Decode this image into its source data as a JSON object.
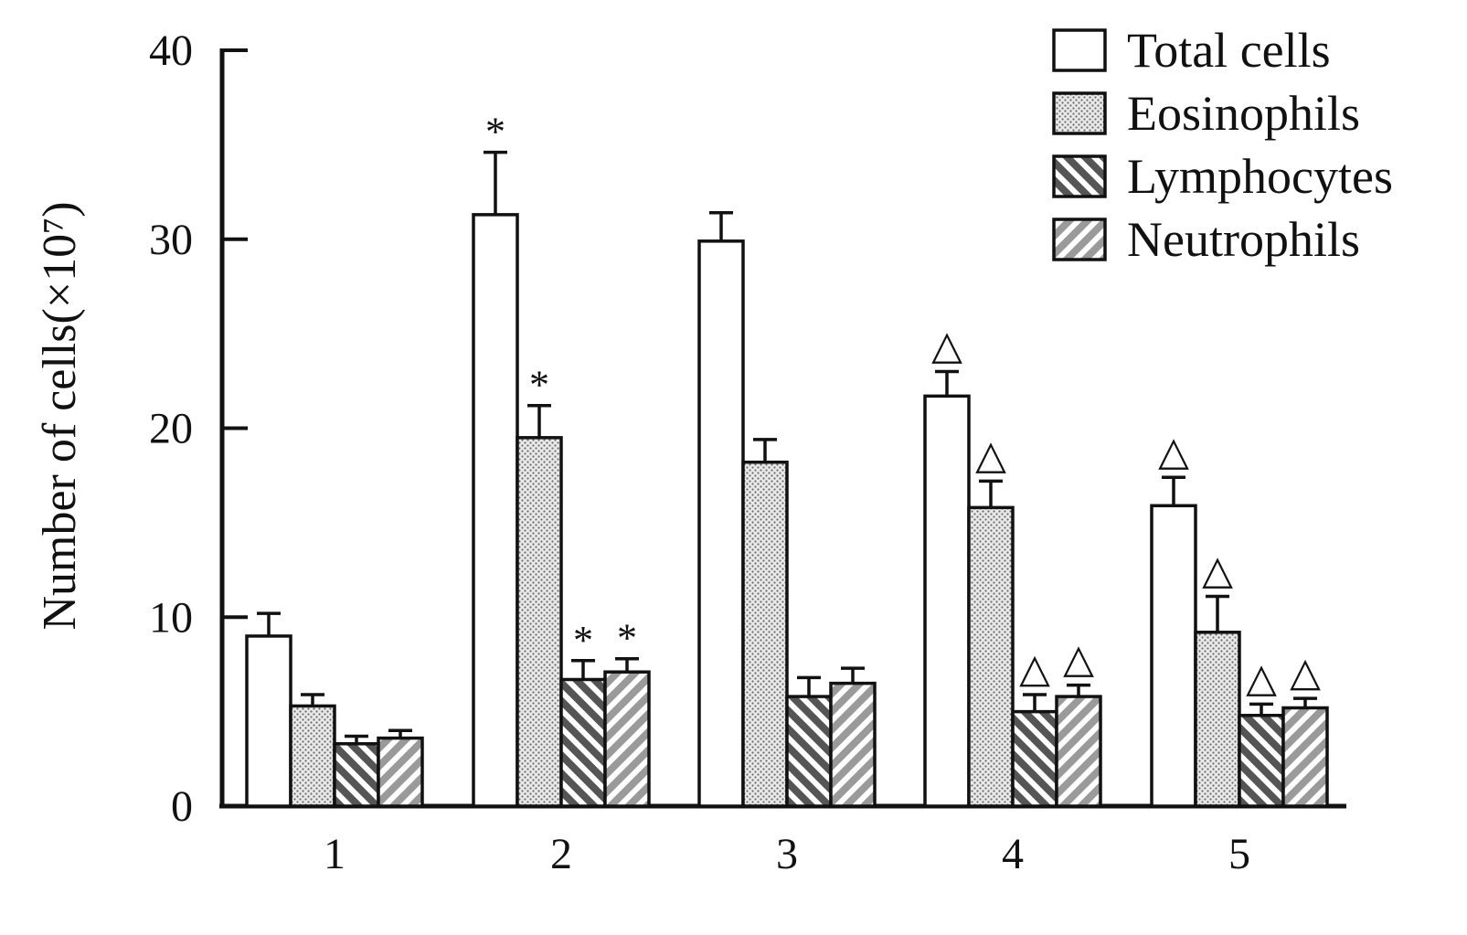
{
  "chart_data": {
    "type": "bar",
    "title": "",
    "xlabel": "",
    "ylabel": "Number of cells(×10⁷)",
    "ylim": [
      0,
      40
    ],
    "yticks": [
      0,
      10,
      20,
      30,
      40
    ],
    "categories": [
      "1",
      "2",
      "3",
      "4",
      "5"
    ],
    "legend_position": "top-right",
    "series": [
      {
        "name": "Total cells",
        "pattern": "empty",
        "values": [
          9.0,
          31.3,
          29.9,
          21.7,
          15.9
        ],
        "errors": [
          1.2,
          3.3,
          1.5,
          1.3,
          1.5
        ],
        "markers": [
          "",
          "*",
          "",
          "△",
          "△"
        ]
      },
      {
        "name": "Eosinophils",
        "pattern": "dots",
        "values": [
          5.3,
          19.5,
          18.2,
          15.8,
          9.2
        ],
        "errors": [
          0.6,
          1.7,
          1.2,
          1.4,
          1.9
        ],
        "markers": [
          "",
          "*",
          "",
          "△",
          "△"
        ]
      },
      {
        "name": "Lymphocytes",
        "pattern": "backslash",
        "values": [
          3.3,
          6.7,
          5.8,
          5.0,
          4.8
        ],
        "errors": [
          0.4,
          1.0,
          1.0,
          0.9,
          0.6
        ],
        "markers": [
          "",
          "*",
          "",
          "△",
          "△"
        ]
      },
      {
        "name": "Neutrophils",
        "pattern": "slash",
        "values": [
          3.6,
          7.1,
          6.5,
          5.8,
          5.2
        ],
        "errors": [
          0.4,
          0.7,
          0.8,
          0.6,
          0.5
        ],
        "markers": [
          "",
          "*",
          "",
          "△",
          "△"
        ]
      }
    ]
  }
}
